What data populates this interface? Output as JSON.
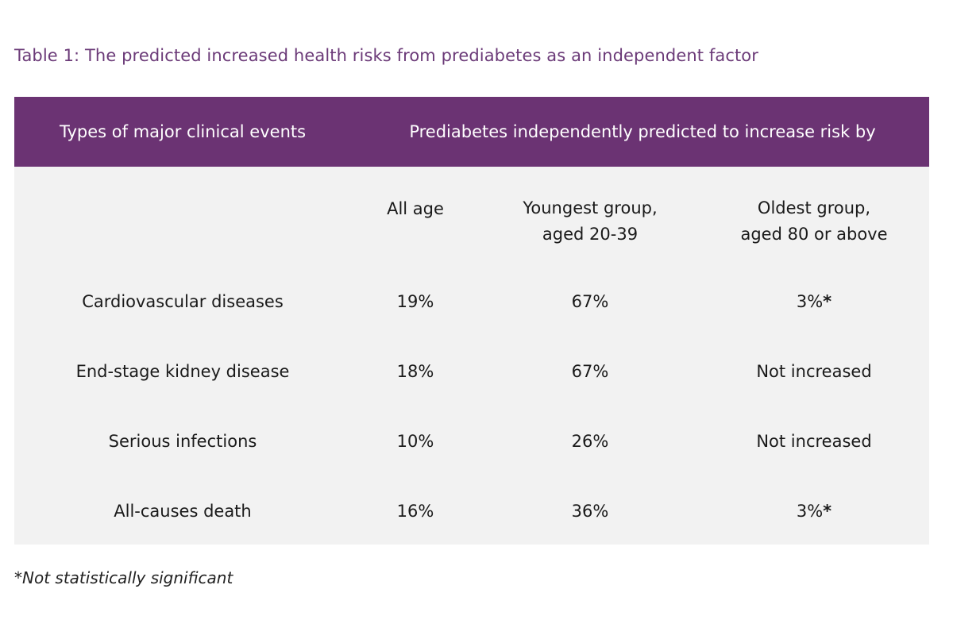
{
  "caption": "Table 1: The predicted increased health risks from prediabetes as an independent factor",
  "table": {
    "header": {
      "col_events": "Types of major clinical events",
      "col_risk": "Prediabetes independently predicted to increase risk by"
    },
    "subheaders": {
      "all_age": "All age",
      "youngest_line1": "Youngest group,",
      "youngest_line2": "aged 20-39",
      "oldest_line1": "Oldest group,",
      "oldest_line2": "aged 80 or above"
    },
    "rows": [
      {
        "event": "Cardiovascular diseases",
        "all_age": "19%",
        "youngest": "67%",
        "oldest": "3%",
        "oldest_mark": "*"
      },
      {
        "event": "End-stage kidney disease",
        "all_age": "18%",
        "youngest": "67%",
        "oldest": "Not increased",
        "oldest_mark": ""
      },
      {
        "event": "Serious infections",
        "all_age": "10%",
        "youngest": "26%",
        "oldest": "Not increased",
        "oldest_mark": ""
      },
      {
        "event": "All-causes death",
        "all_age": "16%",
        "youngest": "36%",
        "oldest": "3%",
        "oldest_mark": "*"
      }
    ]
  },
  "footnote": "*Not statistically significant",
  "colors": {
    "header_bg": "#6b3373",
    "caption_text": "#6b3a78",
    "table_bg": "#f2f2f2"
  }
}
